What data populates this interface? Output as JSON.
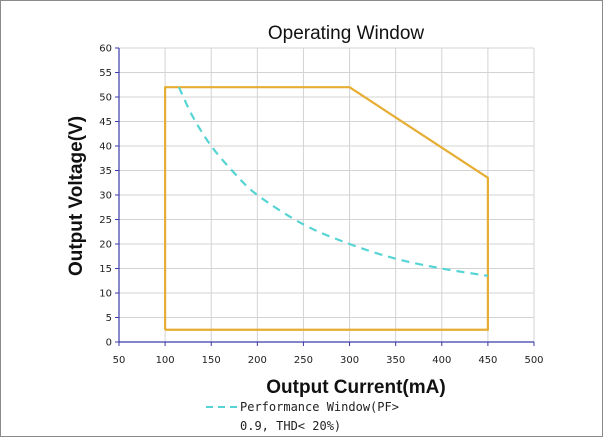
{
  "chart_data": {
    "type": "line",
    "title": "Operating Window",
    "xlabel": "Output Current(mA)",
    "ylabel": "Output Voltage(V)",
    "xlim": [
      50,
      500
    ],
    "ylim": [
      0,
      60
    ],
    "xticks": [
      50,
      100,
      150,
      200,
      250,
      300,
      350,
      400,
      450,
      500
    ],
    "yticks": [
      0,
      5,
      10,
      15,
      20,
      25,
      30,
      35,
      40,
      45,
      50,
      55,
      60
    ],
    "grid": true,
    "legend_position": "bottom",
    "series": [
      {
        "name": "",
        "style": "solid",
        "color": "#e6ad32",
        "x": [
          100,
          100,
          300,
          450,
          450,
          100
        ],
        "y": [
          2.5,
          52,
          52,
          33.5,
          2.5,
          2.5
        ]
      },
      {
        "name": "Performance Window(PF> 0.9, THD< 20%)",
        "style": "dashed",
        "color": "#56d4d4",
        "x": [
          115,
          130,
          150,
          175,
          200,
          250,
          300,
          350,
          400,
          450
        ],
        "y": [
          52,
          46,
          40,
          34.5,
          30,
          24,
          20,
          17,
          15,
          13.5
        ]
      }
    ],
    "legend": {
      "line1": "Performance Window(PF>",
      "line2": "0.9, THD< 20%)"
    }
  }
}
